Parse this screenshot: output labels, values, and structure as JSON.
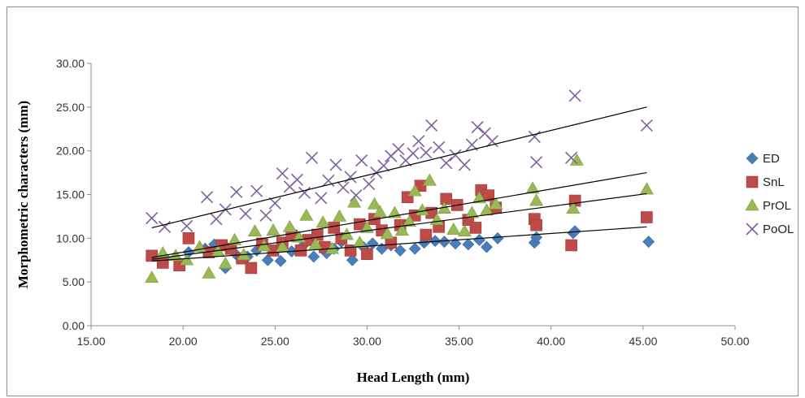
{
  "chart_data": {
    "type": "scatter",
    "xlabel": "Head Length (mm)",
    "ylabel": "Morphometric characters (mm)",
    "xlim": [
      15,
      50
    ],
    "ylim": [
      0,
      30
    ],
    "x_ticks": [
      "15.00",
      "20.00",
      "25.00",
      "30.00",
      "35.00",
      "40.00",
      "45.00",
      "50.00"
    ],
    "y_ticks": [
      "0.00",
      "5.00",
      "10.00",
      "15.00",
      "20.00",
      "25.00",
      "30.00"
    ],
    "grid": false,
    "legend_position": "right",
    "series": [
      {
        "name": "ED",
        "marker": "diamond",
        "color": "#4a7ebb",
        "points": [
          [
            18.4,
            8.0
          ],
          [
            19.0,
            7.8
          ],
          [
            20.3,
            8.4
          ],
          [
            21.2,
            8.8
          ],
          [
            21.7,
            9.3
          ],
          [
            22.3,
            6.6
          ],
          [
            22.9,
            8.1
          ],
          [
            23.5,
            7.9
          ],
          [
            24.0,
            8.6
          ],
          [
            24.6,
            7.5
          ],
          [
            25.3,
            7.4
          ],
          [
            25.9,
            8.5
          ],
          [
            26.5,
            9.1
          ],
          [
            27.1,
            7.9
          ],
          [
            27.8,
            8.3
          ],
          [
            28.2,
            8.8
          ],
          [
            28.6,
            9.6
          ],
          [
            29.2,
            7.5
          ],
          [
            29.8,
            9.0
          ],
          [
            30.3,
            9.4
          ],
          [
            30.8,
            8.8
          ],
          [
            31.3,
            9.2
          ],
          [
            31.8,
            8.6
          ],
          [
            32.6,
            8.8
          ],
          [
            33.1,
            9.5
          ],
          [
            33.7,
            9.7
          ],
          [
            34.2,
            9.6
          ],
          [
            34.8,
            9.4
          ],
          [
            35.5,
            9.3
          ],
          [
            36.1,
            9.8
          ],
          [
            36.5,
            9.0
          ],
          [
            37.1,
            10.0
          ],
          [
            39.1,
            9.5
          ],
          [
            39.2,
            10.1
          ],
          [
            41.2,
            10.6
          ],
          [
            41.3,
            10.8
          ],
          [
            45.3,
            9.6
          ]
        ]
      },
      {
        "name": "SnL",
        "marker": "square",
        "color": "#be4b48",
        "points": [
          [
            18.3,
            8.0
          ],
          [
            18.9,
            7.2
          ],
          [
            19.8,
            6.9
          ],
          [
            20.3,
            10.0
          ],
          [
            21.4,
            8.4
          ],
          [
            22.1,
            9.2
          ],
          [
            22.6,
            8.8
          ],
          [
            23.2,
            7.7
          ],
          [
            23.7,
            6.6
          ],
          [
            24.3,
            9.4
          ],
          [
            24.9,
            8.6
          ],
          [
            25.4,
            9.5
          ],
          [
            25.9,
            10.3
          ],
          [
            26.4,
            8.6
          ],
          [
            26.8,
            9.8
          ],
          [
            27.3,
            10.4
          ],
          [
            27.7,
            9.0
          ],
          [
            28.2,
            11.2
          ],
          [
            28.6,
            10.0
          ],
          [
            29.1,
            8.6
          ],
          [
            29.6,
            11.6
          ],
          [
            30.0,
            8.2
          ],
          [
            30.4,
            12.2
          ],
          [
            30.8,
            10.9
          ],
          [
            31.3,
            9.5
          ],
          [
            31.8,
            11.5
          ],
          [
            32.2,
            14.7
          ],
          [
            32.6,
            12.6
          ],
          [
            32.9,
            16.0
          ],
          [
            33.2,
            10.4
          ],
          [
            33.5,
            12.9
          ],
          [
            33.9,
            11.3
          ],
          [
            34.3,
            14.5
          ],
          [
            34.9,
            13.8
          ],
          [
            35.5,
            12.1
          ],
          [
            35.9,
            11.2
          ],
          [
            36.2,
            15.5
          ],
          [
            36.6,
            14.9
          ],
          [
            37.0,
            13.5
          ],
          [
            39.1,
            12.2
          ],
          [
            39.2,
            11.5
          ],
          [
            41.1,
            9.2
          ],
          [
            41.3,
            14.3
          ],
          [
            45.2,
            12.4
          ]
        ]
      },
      {
        "name": "PrOL",
        "marker": "triangle",
        "color": "#98b954",
        "points": [
          [
            18.3,
            5.5
          ],
          [
            18.9,
            8.3
          ],
          [
            19.6,
            8.0
          ],
          [
            20.2,
            7.5
          ],
          [
            20.9,
            9.0
          ],
          [
            21.4,
            6.0
          ],
          [
            21.9,
            8.5
          ],
          [
            22.3,
            7.1
          ],
          [
            22.8,
            9.8
          ],
          [
            23.3,
            8.1
          ],
          [
            23.9,
            10.8
          ],
          [
            24.4,
            9.1
          ],
          [
            24.9,
            10.9
          ],
          [
            25.4,
            9.0
          ],
          [
            25.8,
            11.3
          ],
          [
            26.3,
            10.1
          ],
          [
            26.7,
            12.6
          ],
          [
            27.2,
            9.3
          ],
          [
            27.6,
            11.8
          ],
          [
            28.1,
            8.8
          ],
          [
            28.5,
            12.5
          ],
          [
            28.9,
            10.4
          ],
          [
            29.3,
            14.1
          ],
          [
            29.6,
            9.5
          ],
          [
            30.0,
            11.2
          ],
          [
            30.4,
            13.9
          ],
          [
            30.7,
            13.0
          ],
          [
            31.1,
            10.5
          ],
          [
            31.5,
            12.9
          ],
          [
            31.9,
            10.9
          ],
          [
            32.3,
            11.9
          ],
          [
            32.6,
            15.4
          ],
          [
            33.0,
            13.2
          ],
          [
            33.4,
            16.6
          ],
          [
            33.8,
            12.1
          ],
          [
            34.2,
            13.4
          ],
          [
            34.7,
            11.0
          ],
          [
            35.3,
            10.8
          ],
          [
            35.7,
            12.9
          ],
          [
            36.1,
            14.6
          ],
          [
            36.5,
            13.2
          ],
          [
            37.0,
            13.9
          ],
          [
            39.0,
            15.7
          ],
          [
            39.2,
            14.3
          ],
          [
            41.2,
            13.4
          ],
          [
            41.4,
            18.9
          ],
          [
            45.2,
            15.6
          ]
        ]
      },
      {
        "name": "PoOL",
        "marker": "x",
        "color": "#7d60a0",
        "points": [
          [
            18.3,
            12.3
          ],
          [
            19.0,
            11.3
          ],
          [
            20.2,
            11.4
          ],
          [
            21.3,
            14.7
          ],
          [
            21.8,
            12.2
          ],
          [
            22.3,
            13.3
          ],
          [
            22.9,
            15.3
          ],
          [
            23.4,
            12.8
          ],
          [
            24.0,
            15.4
          ],
          [
            24.5,
            12.6
          ],
          [
            25.0,
            14.0
          ],
          [
            25.4,
            17.4
          ],
          [
            25.8,
            15.9
          ],
          [
            26.2,
            16.7
          ],
          [
            26.6,
            15.2
          ],
          [
            27.0,
            19.2
          ],
          [
            27.5,
            14.6
          ],
          [
            27.9,
            16.6
          ],
          [
            28.3,
            18.4
          ],
          [
            28.7,
            15.8
          ],
          [
            29.1,
            17.0
          ],
          [
            29.4,
            14.9
          ],
          [
            29.7,
            18.9
          ],
          [
            30.1,
            16.2
          ],
          [
            30.5,
            17.5
          ],
          [
            30.9,
            18.3
          ],
          [
            31.3,
            19.4
          ],
          [
            31.7,
            20.2
          ],
          [
            32.1,
            18.9
          ],
          [
            32.5,
            19.7
          ],
          [
            32.8,
            21.1
          ],
          [
            33.2,
            19.8
          ],
          [
            33.5,
            22.9
          ],
          [
            33.9,
            20.4
          ],
          [
            34.3,
            18.6
          ],
          [
            34.8,
            19.5
          ],
          [
            35.3,
            18.4
          ],
          [
            35.7,
            20.7
          ],
          [
            36.0,
            22.7
          ],
          [
            36.4,
            22.0
          ],
          [
            36.8,
            21.1
          ],
          [
            39.1,
            21.6
          ],
          [
            39.2,
            18.7
          ],
          [
            41.1,
            19.2
          ],
          [
            41.3,
            26.3
          ],
          [
            45.2,
            22.9
          ]
        ]
      }
    ],
    "trendlines": [
      {
        "series": "ED",
        "x": [
          18.3,
          45.2
        ],
        "y": [
          7.4,
          11.3
        ]
      },
      {
        "series": "SnL",
        "x": [
          18.3,
          45.2
        ],
        "y": [
          7.8,
          17.5
        ]
      },
      {
        "series": "PrOL",
        "x": [
          18.3,
          45.2
        ],
        "y": [
          7.6,
          15.1
        ]
      },
      {
        "series": "PoOL",
        "x": [
          18.3,
          45.2
        ],
        "y": [
          11.2,
          25.0
        ]
      }
    ]
  }
}
